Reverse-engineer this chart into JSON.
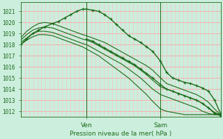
{
  "bg_color": "#cceedd",
  "plot_bg_color": "#cceedd",
  "grid_color": "#ff9999",
  "vgrid_color": "#ffbbbb",
  "line_color": "#1a6b1a",
  "xlabel": "Pression niveau de la mer( hPa )",
  "xtick_labels": [
    "Ven",
    "Sam"
  ],
  "xtick_positions": [
    0.33,
    0.7
  ],
  "ytick_min": 1012,
  "ytick_max": 1021,
  "ylim": [
    1011.5,
    1021.8
  ],
  "xlim": [
    0.0,
    1.0
  ],
  "vline_positions": [
    0.33,
    0.7
  ],
  "series": [
    {
      "x": [
        0.0,
        0.03,
        0.06,
        0.09,
        0.12,
        0.16,
        0.19,
        0.22,
        0.25,
        0.28,
        0.31,
        0.33,
        0.36,
        0.39,
        0.42,
        0.45,
        0.48,
        0.51,
        0.54,
        0.57,
        0.6,
        0.63,
        0.66,
        0.7,
        0.73,
        0.76,
        0.79,
        0.82,
        0.85,
        0.88,
        0.91,
        0.94,
        0.97,
        1.0
      ],
      "y": [
        1018.0,
        1018.5,
        1019.0,
        1019.3,
        1019.6,
        1019.9,
        1020.1,
        1020.4,
        1020.7,
        1021.0,
        1021.2,
        1021.2,
        1021.1,
        1021.0,
        1020.7,
        1020.3,
        1019.8,
        1019.3,
        1018.8,
        1018.5,
        1018.2,
        1017.8,
        1017.4,
        1016.5,
        1015.5,
        1015.0,
        1014.8,
        1014.6,
        1014.5,
        1014.3,
        1014.1,
        1013.8,
        1013.0,
        1011.8
      ],
      "with_markers": true,
      "lw": 1.0
    },
    {
      "x": [
        0.0,
        0.03,
        0.06,
        0.09,
        0.12,
        0.16,
        0.19,
        0.22,
        0.25,
        0.28,
        0.31,
        0.33,
        0.36,
        0.39,
        0.42,
        0.45,
        0.48,
        0.51,
        0.54,
        0.57,
        0.6,
        0.63,
        0.66,
        0.7,
        0.73,
        0.76,
        0.79,
        0.82,
        0.85,
        0.88,
        0.91,
        0.94,
        0.97,
        1.0
      ],
      "y": [
        1018.6,
        1019.2,
        1019.6,
        1019.9,
        1020.0,
        1019.9,
        1019.7,
        1019.5,
        1019.3,
        1019.1,
        1018.9,
        1018.8,
        1018.6,
        1018.4,
        1018.2,
        1017.9,
        1017.6,
        1017.3,
        1017.0,
        1016.7,
        1016.4,
        1016.1,
        1015.7,
        1015.0,
        1014.5,
        1014.3,
        1014.1,
        1013.9,
        1013.7,
        1013.5,
        1013.2,
        1012.8,
        1012.2,
        1011.7
      ],
      "with_markers": false,
      "lw": 0.8
    },
    {
      "x": [
        0.0,
        0.03,
        0.06,
        0.09,
        0.12,
        0.16,
        0.19,
        0.22,
        0.25,
        0.28,
        0.31,
        0.33,
        0.36,
        0.39,
        0.42,
        0.45,
        0.48,
        0.51,
        0.54,
        0.57,
        0.6,
        0.63,
        0.66,
        0.7,
        0.73,
        0.76,
        0.79,
        0.82,
        0.85,
        0.88,
        0.91,
        0.94,
        0.97,
        1.0
      ],
      "y": [
        1018.4,
        1018.9,
        1019.3,
        1019.5,
        1019.6,
        1019.5,
        1019.3,
        1019.1,
        1018.9,
        1018.7,
        1018.5,
        1018.4,
        1018.2,
        1017.9,
        1017.6,
        1017.3,
        1017.0,
        1016.7,
        1016.4,
        1016.1,
        1015.7,
        1015.3,
        1014.8,
        1014.2,
        1014.0,
        1013.8,
        1013.6,
        1013.4,
        1013.2,
        1013.0,
        1012.7,
        1012.3,
        1011.9,
        1011.7
      ],
      "with_markers": false,
      "lw": 0.8
    },
    {
      "x": [
        0.0,
        0.03,
        0.06,
        0.09,
        0.12,
        0.16,
        0.19,
        0.22,
        0.25,
        0.28,
        0.31,
        0.33,
        0.36,
        0.39,
        0.42,
        0.45,
        0.48,
        0.51,
        0.54,
        0.57,
        0.6,
        0.63,
        0.66,
        0.7,
        0.73,
        0.76,
        0.79,
        0.82,
        0.85,
        0.88,
        0.91,
        0.94,
        0.97,
        1.0
      ],
      "y": [
        1018.2,
        1018.6,
        1019.0,
        1019.2,
        1019.2,
        1019.1,
        1018.9,
        1018.7,
        1018.5,
        1018.3,
        1018.1,
        1018.0,
        1017.7,
        1017.4,
        1017.1,
        1016.8,
        1016.5,
        1016.2,
        1015.8,
        1015.4,
        1015.0,
        1014.5,
        1014.0,
        1013.5,
        1013.3,
        1013.1,
        1012.9,
        1012.7,
        1012.5,
        1012.3,
        1012.0,
        1011.8,
        1011.7,
        1011.7
      ],
      "with_markers": false,
      "lw": 0.8
    },
    {
      "x": [
        0.0,
        0.03,
        0.06,
        0.09,
        0.12,
        0.16,
        0.19,
        0.22,
        0.25,
        0.28,
        0.31,
        0.33,
        0.36,
        0.39,
        0.42,
        0.45,
        0.48,
        0.51,
        0.54,
        0.57,
        0.6,
        0.63,
        0.66,
        0.7,
        0.73,
        0.76,
        0.79,
        0.82,
        0.85,
        0.88,
        0.91,
        0.94,
        0.97,
        1.0
      ],
      "y": [
        1018.0,
        1018.4,
        1018.7,
        1018.9,
        1018.9,
        1018.8,
        1018.6,
        1018.4,
        1018.2,
        1018.0,
        1017.8,
        1017.6,
        1017.3,
        1017.0,
        1016.6,
        1016.2,
        1015.8,
        1015.4,
        1015.0,
        1014.5,
        1014.0,
        1013.5,
        1012.9,
        1012.2,
        1012.0,
        1011.9,
        1011.8,
        1011.7,
        1011.7,
        1011.7,
        1011.7,
        1011.7,
        1011.7,
        1011.7
      ],
      "with_markers": false,
      "lw": 0.8
    },
    {
      "x": [
        0.33,
        0.36,
        0.39,
        0.42,
        0.45,
        0.48,
        0.51,
        0.54,
        0.57,
        0.6,
        0.63,
        0.66,
        0.7,
        0.73,
        0.76,
        0.79,
        0.82,
        0.85,
        0.88,
        0.91,
        0.94,
        0.97,
        1.0
      ],
      "y": [
        1018.5,
        1018.3,
        1018.0,
        1017.7,
        1017.4,
        1017.1,
        1016.8,
        1016.5,
        1016.2,
        1015.8,
        1015.4,
        1015.0,
        1014.4,
        1014.0,
        1013.8,
        1013.6,
        1013.4,
        1013.2,
        1013.0,
        1012.7,
        1012.3,
        1011.8,
        1011.6
      ],
      "with_markers": true,
      "lw": 1.0
    }
  ]
}
